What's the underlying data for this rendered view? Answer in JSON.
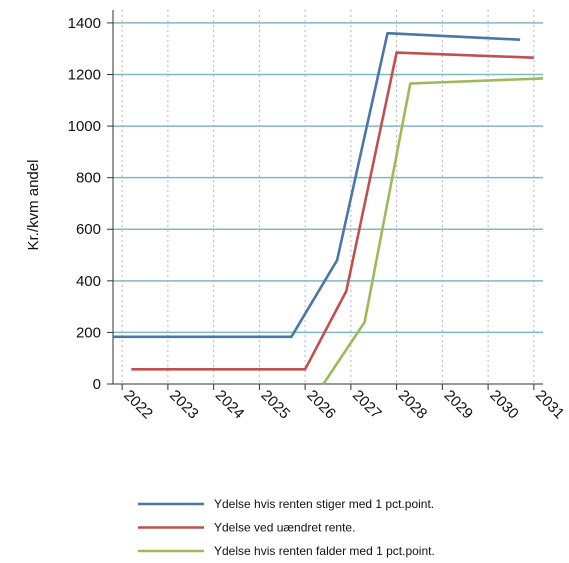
{
  "chart_data": {
    "type": "line",
    "title": "",
    "xlabel": "",
    "ylabel": "Kr./kvm andel",
    "x": [
      2022,
      2023,
      2024,
      2025,
      2026,
      2027,
      2028,
      2029,
      2030,
      2031
    ],
    "x_tick_labels": [
      "2022",
      "2023",
      "2024",
      "2025",
      "2026",
      "2027",
      "2028",
      "2029",
      "2030",
      "2031"
    ],
    "xlim": [
      2021.8,
      2031.2
    ],
    "ylim": [
      0,
      1450
    ],
    "y_ticks": [
      0,
      200,
      400,
      600,
      800,
      1000,
      1200,
      1400
    ],
    "grid": {
      "horizontal": true,
      "vertical": "dotted"
    },
    "legend_position": "bottom",
    "series": [
      {
        "name": "Ydelse hvis renten stiger med 1 pct.point.",
        "color": "#4a76a8",
        "points": [
          [
            2021.8,
            183
          ],
          [
            2025.7,
            183
          ],
          [
            2026.7,
            480
          ],
          [
            2027.8,
            1360
          ],
          [
            2030.7,
            1335
          ]
        ]
      },
      {
        "name": "Ydelse ved uændret rente.",
        "color": "#c0504d",
        "points": [
          [
            2022.2,
            57
          ],
          [
            2026.0,
            57
          ],
          [
            2026.9,
            360
          ],
          [
            2028.0,
            1285
          ],
          [
            2031.0,
            1265
          ]
        ]
      },
      {
        "name": "Ydelse hvis renten falder med 1 pct.point.",
        "color": "#9bbb59",
        "points": [
          [
            2026.4,
            0
          ],
          [
            2027.3,
            240
          ],
          [
            2028.3,
            1165
          ],
          [
            2031.2,
            1185
          ]
        ]
      }
    ]
  }
}
